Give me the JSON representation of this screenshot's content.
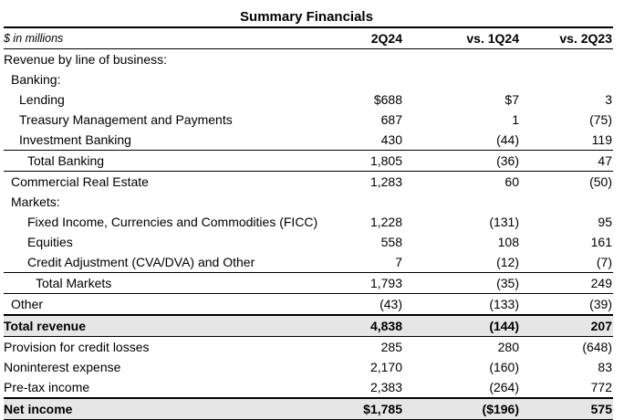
{
  "title": "Summary Financials",
  "header": {
    "units": "$ in millions",
    "col1": "2Q24",
    "col2": "vs. 1Q24",
    "col3": "vs. 2Q23"
  },
  "rows": [
    {
      "label": "Revenue by line of business:",
      "v1": "",
      "v2": "",
      "v3": ""
    },
    {
      "label": "Banking:",
      "v1": "",
      "v2": "",
      "v3": ""
    },
    {
      "label": "Lending",
      "v1": "$688",
      "v2": "$7",
      "v3": "3"
    },
    {
      "label": "Treasury Management and Payments",
      "v1": "687",
      "v2": "1",
      "v3": "(75)"
    },
    {
      "label": "Investment Banking",
      "v1": "430",
      "v2": "(44)",
      "v3": "119"
    },
    {
      "label": "Total Banking",
      "v1": "1,805",
      "v2": "(36)",
      "v3": "47"
    },
    {
      "label": "Commercial Real Estate",
      "v1": "1,283",
      "v2": "60",
      "v3": "(50)"
    },
    {
      "label": "Markets:",
      "v1": "",
      "v2": "",
      "v3": ""
    },
    {
      "label": "Fixed Income, Currencies and Commodities (FICC)",
      "v1": "1,228",
      "v2": "(131)",
      "v3": "95"
    },
    {
      "label": "Equities",
      "v1": "558",
      "v2": "108",
      "v3": "161"
    },
    {
      "label": "Credit Adjustment (CVA/DVA) and Other",
      "v1": "7",
      "v2": "(12)",
      "v3": "(7)"
    },
    {
      "label": "Total Markets",
      "v1": "1,793",
      "v2": "(35)",
      "v3": "249"
    },
    {
      "label": "Other",
      "v1": "(43)",
      "v2": "(133)",
      "v3": "(39)"
    },
    {
      "label": "Total revenue",
      "v1": "4,838",
      "v2": "(144)",
      "v3": "207"
    },
    {
      "label": "Provision for credit losses",
      "v1": "285",
      "v2": "280",
      "v3": "(648)"
    },
    {
      "label": "Noninterest expense",
      "v1": "2,170",
      "v2": "(160)",
      "v3": "83"
    },
    {
      "label": "Pre-tax income",
      "v1": "2,383",
      "v2": "(264)",
      "v3": "772"
    },
    {
      "label": "Net income",
      "v1": "$1,785",
      "v2": "($196)",
      "v3": "575"
    }
  ]
}
